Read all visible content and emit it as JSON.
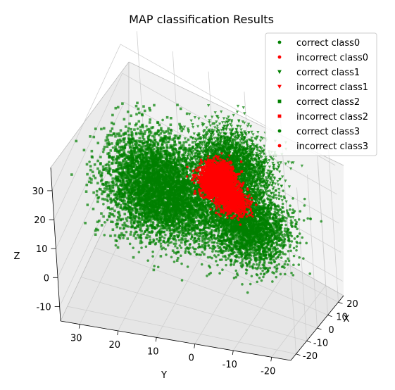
{
  "chart_data": {
    "type": "scatter",
    "projection": "3d",
    "title": "MAP classification Results",
    "xlabel": "X",
    "ylabel": "Y",
    "zlabel": "Z",
    "x_ticks": [
      20,
      10,
      0,
      -10,
      -20
    ],
    "y_ticks": [
      30,
      20,
      10,
      0,
      -10,
      -20
    ],
    "z_ticks": [
      30,
      20,
      10,
      0,
      -10
    ],
    "grid": true,
    "legend_position": "top-right",
    "colors": {
      "correct": "#008000",
      "incorrect": "#ff0000"
    },
    "series": [
      {
        "name": "correct class0",
        "marker": "circle",
        "color": "#008000",
        "center": [
          -2,
          10,
          14
        ],
        "spread": [
          6,
          7,
          6
        ]
      },
      {
        "name": "incorrect class0",
        "marker": "circle",
        "color": "#ff0000",
        "center": [
          5,
          3,
          19
        ],
        "spread": [
          2,
          2,
          2
        ]
      },
      {
        "name": "correct class1",
        "marker": "triangle",
        "color": "#008000",
        "center": [
          10,
          -1,
          23
        ],
        "spread": [
          5,
          5,
          5
        ]
      },
      {
        "name": "incorrect class1",
        "marker": "triangle",
        "color": "#ff0000",
        "center": [
          6,
          1,
          21
        ],
        "spread": [
          2,
          2,
          2
        ]
      },
      {
        "name": "correct class2",
        "marker": "square",
        "color": "#008000",
        "center": [
          -5,
          16,
          21
        ],
        "spread": [
          6,
          6,
          7
        ]
      },
      {
        "name": "incorrect class2",
        "marker": "square",
        "color": "#ff0000",
        "center": [
          6,
          1,
          19
        ],
        "spread": [
          2,
          2,
          3
        ]
      },
      {
        "name": "correct class3",
        "marker": "circle",
        "color": "#008000",
        "center": [
          0,
          -8,
          12
        ],
        "spread": [
          6,
          5,
          5
        ]
      },
      {
        "name": "incorrect class3",
        "marker": "circle",
        "color": "#ff0000",
        "center": [
          5,
          -2,
          15
        ],
        "spread": [
          2,
          2,
          2
        ]
      }
    ]
  }
}
